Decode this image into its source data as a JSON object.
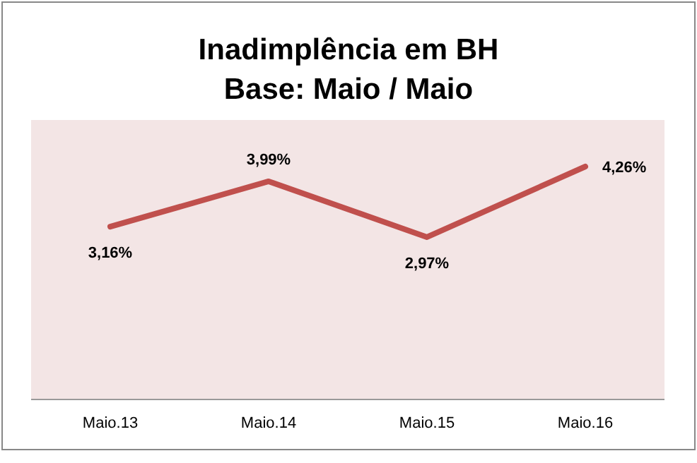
{
  "chart_data": {
    "type": "line",
    "title": "Inadimplência em BH",
    "subtitle": "Base: Maio / Maio",
    "categories": [
      "Maio.13",
      "Maio.14",
      "Maio.15",
      "Maio.16"
    ],
    "series": [
      {
        "color": "#c0504d",
        "values": [
          3.16,
          3.99,
          2.97,
          4.26
        ],
        "value_labels": [
          "3,16%",
          "3,99%",
          "2,97%",
          "4,26%"
        ]
      }
    ],
    "marker": "none",
    "line_style": "solid",
    "grid": false,
    "tick_labels": "x"
  }
}
